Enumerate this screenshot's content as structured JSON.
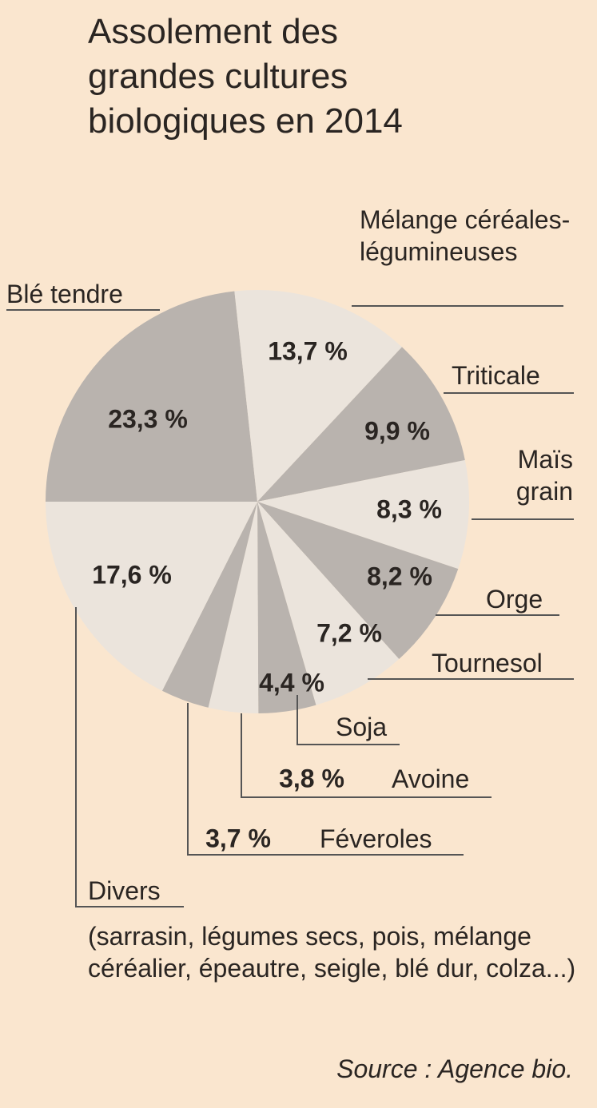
{
  "chart_data": {
    "type": "pie",
    "title": "Assolement des grandes cultures biologiques en 2014",
    "categories": [
      "Blé tendre",
      "Mélange céréales-légumineuses",
      "Triticale",
      "Maïs grain",
      "Orge",
      "Tournesol",
      "Soja",
      "Avoine",
      "Féveroles",
      "Divers"
    ],
    "values": [
      23.3,
      13.7,
      9.9,
      8.3,
      8.2,
      7.2,
      4.4,
      3.8,
      3.7,
      17.6
    ],
    "value_labels": [
      "23,3 %",
      "13,7 %",
      "9,9 %",
      "8,3 %",
      "8,2 %",
      "7,2 %",
      "4,4 %",
      "3,8 %",
      "3,7 %",
      "17,6 %"
    ],
    "colors": [
      "#b9b3ae",
      "#ebe4dc",
      "#b9b3ae",
      "#ebe4dc",
      "#b9b3ae",
      "#ebe4dc",
      "#b9b3ae",
      "#ebe4dc",
      "#b9b3ae",
      "#ebe4dc"
    ],
    "note": "(sarrasin, légumes secs, pois, mélange céréalier, épeautre, seigle, blé dur, colza...)",
    "source": "Source : Agence bio."
  }
}
